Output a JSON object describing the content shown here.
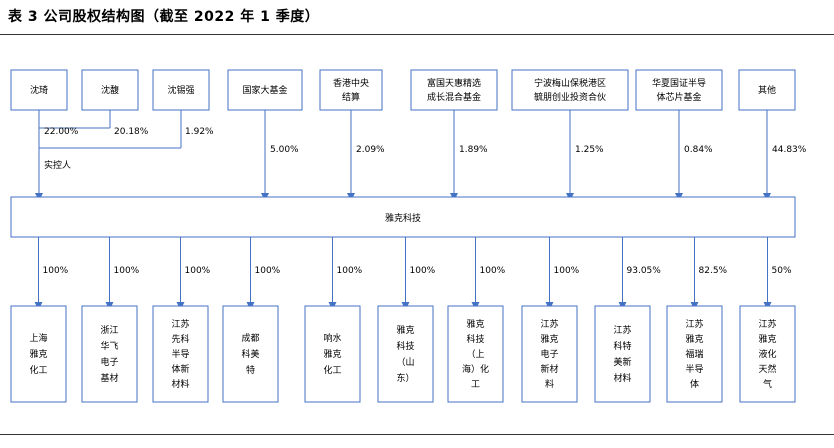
{
  "title": "表 3 公司股权结构图（截至 2022 年 1 季度）",
  "colors": {
    "box_border": "#4472c4",
    "line": "#4472c4",
    "rule": "#333333"
  },
  "shareholders": [
    {
      "id": "shenqi",
      "lines": [
        "沈琦"
      ],
      "pct": "22.00%"
    },
    {
      "id": "shensa",
      "lines": [
        "沈馥"
      ],
      "pct": "20.18%"
    },
    {
      "id": "shenxq",
      "lines": [
        "沈锡强"
      ],
      "pct": "1.92%"
    },
    {
      "id": "guojia",
      "lines": [
        "国家大基金"
      ],
      "pct": "5.00%"
    },
    {
      "id": "hkscc",
      "lines": [
        "香港中央",
        "结算"
      ],
      "pct": "2.09%"
    },
    {
      "id": "fuguo",
      "lines": [
        "富国天惠精选",
        "成长混合基金"
      ],
      "pct": "1.89%"
    },
    {
      "id": "ningbo",
      "lines": [
        "宁波梅山保税港区",
        "毓朋创业投资合伙"
      ],
      "pct": "1.25%"
    },
    {
      "id": "huaxia",
      "lines": [
        "华夏国证半导",
        "体芯片基金"
      ],
      "pct": "0.84%"
    },
    {
      "id": "others",
      "lines": [
        "其他"
      ],
      "pct": "44.83%"
    }
  ],
  "controller_label": "实控人",
  "company": "雅克科技",
  "subsidiaries": [
    {
      "id": "sub1",
      "pct": "100%",
      "lines": [
        "上海",
        "雅克",
        "化工"
      ]
    },
    {
      "id": "sub2",
      "pct": "100%",
      "lines": [
        "浙江",
        "华飞",
        "电子",
        "基材"
      ]
    },
    {
      "id": "sub3",
      "pct": "100%",
      "lines": [
        "江苏",
        "先科",
        "半导",
        "体新",
        "材料"
      ]
    },
    {
      "id": "sub4",
      "pct": "100%",
      "lines": [
        "成都",
        "科美",
        "特"
      ]
    },
    {
      "id": "sub5",
      "pct": "100%",
      "lines": [
        "响水",
        "雅克",
        "化工"
      ]
    },
    {
      "id": "sub6",
      "pct": "100%",
      "lines": [
        "雅克",
        "科技",
        "（山",
        "东）"
      ]
    },
    {
      "id": "sub7",
      "pct": "100%",
      "lines": [
        "雅克",
        "科技",
        "（上",
        "海）化",
        "工"
      ]
    },
    {
      "id": "sub8",
      "pct": "100%",
      "lines": [
        "江苏",
        "雅克",
        "电子",
        "新材",
        "料"
      ]
    },
    {
      "id": "sub9",
      "pct": "93.05%",
      "lines": [
        "江苏",
        "科特",
        "美新",
        "材料"
      ]
    },
    {
      "id": "sub10",
      "pct": "82.5%",
      "lines": [
        "江苏",
        "雅克",
        "福瑞",
        "半导",
        "体"
      ]
    },
    {
      "id": "sub11",
      "pct": "50%",
      "lines": [
        "江苏",
        "雅克",
        "液化",
        "天然",
        "气"
      ]
    }
  ]
}
